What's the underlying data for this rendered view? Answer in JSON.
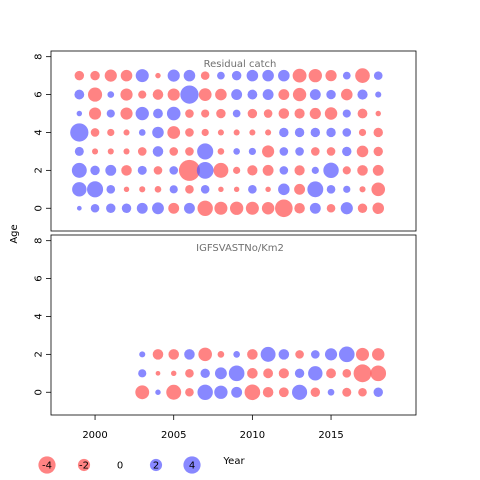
{
  "colors": {
    "positive": "#5555ff",
    "negative": "#ff4f4f",
    "positive_alpha": 0.7,
    "negative_alpha": 0.7
  },
  "labels": {
    "xlabel": "Year",
    "ylabel": "Age"
  },
  "legend": {
    "entries": [
      {
        "label": "-4",
        "value": -4
      },
      {
        "label": "-2",
        "value": -2
      },
      {
        "label": "0",
        "value": 0
      },
      {
        "label": "2",
        "value": 2
      },
      {
        "label": "4",
        "value": 4
      }
    ]
  },
  "chart_data": [
    {
      "type": "scatter",
      "subtype": "bubble",
      "title": "Residual catch",
      "xlabel": "Year",
      "ylabel": "Age",
      "xlim": [
        1997.2,
        2020.4
      ],
      "ylim": [
        -1.2,
        8.3
      ],
      "xticks": [
        2000,
        2005,
        2010,
        2015
      ],
      "yticks": [
        0,
        2,
        4,
        6,
        8
      ],
      "x_labels_shown": false,
      "years": [
        1999,
        2000,
        2001,
        2002,
        2003,
        2004,
        2005,
        2006,
        2007,
        2008,
        2009,
        2010,
        2011,
        2012,
        2013,
        2014,
        2015,
        2016,
        2017,
        2018
      ],
      "ages": [
        0,
        1,
        2,
        3,
        4,
        5,
        6,
        7
      ],
      "residuals": {
        "7": [
          -1.2,
          -1.2,
          -2.0,
          -1.8,
          2.3,
          -0.4,
          2.0,
          1.8,
          -1.0,
          0.8,
          1.2,
          1.8,
          1.8,
          1.8,
          -2.6,
          -2.4,
          -1.7,
          0.8,
          -2.9,
          1.0
        ],
        "6": [
          1.3,
          -2.7,
          0.6,
          -2.0,
          -0.9,
          -1.5,
          -2.0,
          4.5,
          -2.2,
          -1.8,
          1.6,
          1.3,
          1.6,
          -1.6,
          -2.4,
          1.6,
          1.2,
          -1.8,
          1.4,
          0.5
        ],
        "5": [
          0.4,
          -2.0,
          0.9,
          -2.0,
          2.4,
          1.3,
          2.5,
          -1.0,
          -0.9,
          -1.2,
          0.8,
          -1.2,
          -1.0,
          -1.5,
          -1.4,
          -1.7,
          -2.1,
          0.9,
          -1.3,
          -0.4
        ],
        "4": [
          4.5,
          -1.0,
          -0.7,
          -0.5,
          0.6,
          1.8,
          -2.2,
          -1.0,
          -0.7,
          -0.5,
          -0.5,
          -0.5,
          -0.5,
          1.2,
          1.2,
          1.2,
          1.2,
          1.0,
          -0.7,
          -1.2
        ],
        "3": [
          1.1,
          -0.5,
          -0.5,
          -0.5,
          -1.0,
          1.5,
          -1.0,
          -1.0,
          3.5,
          -0.6,
          0.6,
          0.7,
          -2.0,
          1.0,
          1.0,
          -1.0,
          -1.0,
          1.2,
          -1.8,
          -1.2
        ],
        "2": [
          3.0,
          1.2,
          1.6,
          -1.5,
          1.1,
          -1.0,
          1.0,
          -6.0,
          3.8,
          -3.0,
          -0.7,
          -1.4,
          -1.6,
          1.0,
          -1.4,
          0.7,
          3.2,
          -0.9,
          -1.5,
          -1.6
        ],
        "1": [
          2.8,
          3.5,
          1.0,
          -0.4,
          -0.5,
          -0.6,
          0.9,
          -1.0,
          1.0,
          -0.4,
          -0.4,
          1.0,
          -0.4,
          1.8,
          -1.6,
          3.4,
          1.0,
          0.7,
          -0.5,
          -2.5
        ],
        "0": [
          0.3,
          1.0,
          1.2,
          1.2,
          1.6,
          1.9,
          -1.6,
          1.6,
          -3.2,
          -2.3,
          -2.4,
          -2.3,
          -2.1,
          -4.2,
          -1.5,
          1.6,
          -1.0,
          2.0,
          -1.2,
          -1.8
        ]
      }
    },
    {
      "type": "scatter",
      "subtype": "bubble",
      "title": "IGFSVASTNo/Km2",
      "xlabel": "Year",
      "ylabel": "Age",
      "xlim": [
        1997.2,
        2020.4
      ],
      "ylim": [
        -1.2,
        8.3
      ],
      "xticks": [
        2000,
        2005,
        2010,
        2015
      ],
      "yticks": [
        0,
        2,
        4,
        6,
        8
      ],
      "x_labels_shown": true,
      "years": [
        2003,
        2004,
        2005,
        2006,
        2007,
        2008,
        2009,
        2010,
        2011,
        2012,
        2013,
        2014,
        2015,
        2016,
        2017,
        2018
      ],
      "ages": [
        0,
        1,
        2
      ],
      "residuals": {
        "2": [
          0.5,
          -1.5,
          -1.5,
          1.5,
          -2.5,
          -0.6,
          0.6,
          -1.5,
          3.0,
          1.5,
          -1.0,
          1.0,
          2.0,
          3.3,
          -2.3,
          -2.1
        ],
        "1": [
          0.9,
          -0.3,
          -0.4,
          -1.0,
          1.2,
          1.9,
          3.3,
          -1.5,
          -1.3,
          -1.4,
          1.2,
          2.8,
          -1.3,
          -1.0,
          -4.3,
          -3.3
        ],
        "0": [
          -2.6,
          0.4,
          -3.0,
          -1.0,
          3.2,
          2.4,
          1.6,
          -3.3,
          -1.5,
          -1.3,
          3.1,
          -1.2,
          0.6,
          -1.1,
          -1.0,
          1.2
        ]
      }
    }
  ]
}
